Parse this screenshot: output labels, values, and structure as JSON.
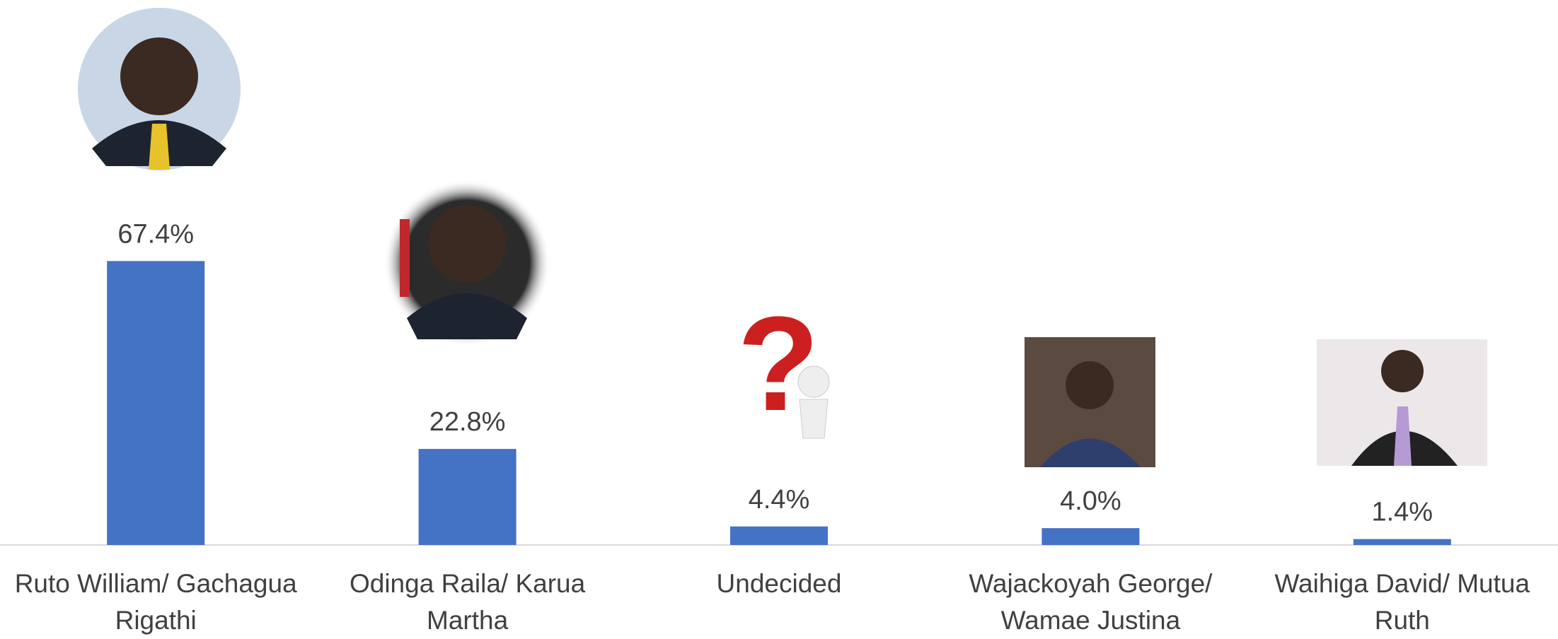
{
  "chart_data": {
    "type": "bar",
    "categories": [
      "Ruto William/ Gachagua Rigathi",
      "Odinga Raila/ Karua Martha",
      "Undecided",
      "Wajackoyah George/ Wamae Justina",
      "Waihiga David/ Mutua Ruth"
    ],
    "values": [
      67.4,
      22.8,
      4.4,
      4.0,
      1.4
    ],
    "value_labels": [
      "67.4%",
      "22.8%",
      "4.4%",
      "4.0%",
      "1.4%"
    ],
    "color": "#4472c4"
  }
}
